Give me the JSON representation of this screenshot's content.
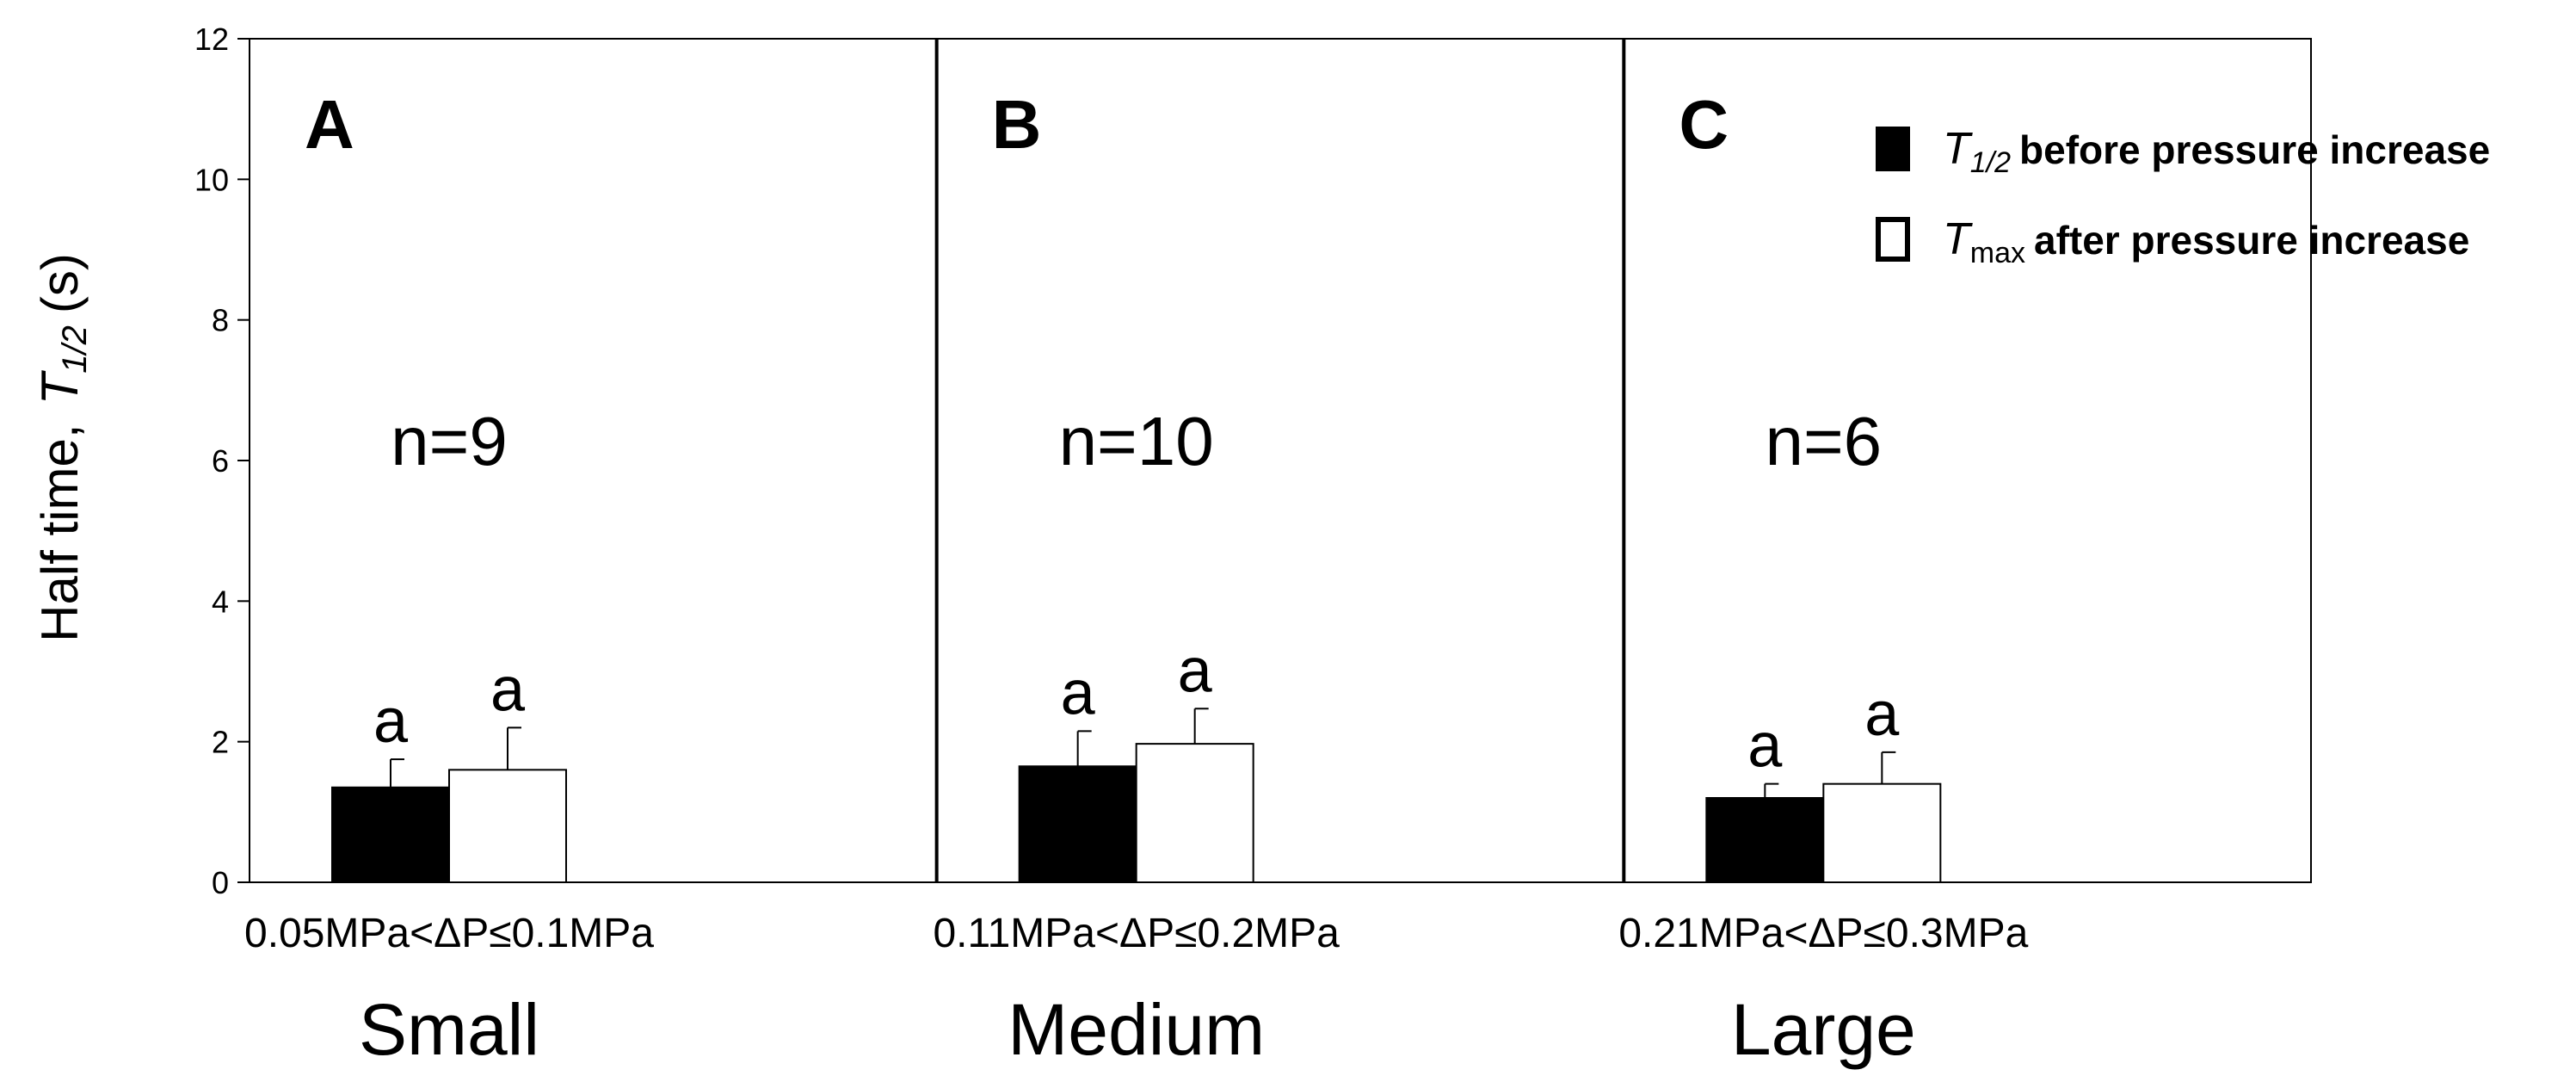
{
  "chart_data": {
    "type": "bar",
    "ylabel": {
      "prefix": "Half time,",
      "symbol": "T",
      "subscript": "1/2",
      "unit": "(s)"
    },
    "ylim": [
      0,
      12
    ],
    "yticks": [
      0,
      2,
      4,
      6,
      8,
      10,
      12
    ],
    "grid": false,
    "legend_position": "right",
    "series": [
      {
        "name": {
          "symbol": "T",
          "subscript": "1/2",
          "text": "before pressure increase"
        },
        "fill": "#000000",
        "values": [
          1.35,
          1.65,
          1.2
        ],
        "errors": [
          0.4,
          0.5,
          0.2
        ],
        "labels": [
          "a",
          "a",
          "a"
        ]
      },
      {
        "name": {
          "symbol": "T",
          "subscript": "max",
          "text": "after pressure increase"
        },
        "fill": "#ffffff",
        "values": [
          1.6,
          1.97,
          1.4
        ],
        "errors": [
          0.6,
          0.5,
          0.45
        ],
        "labels": [
          "a",
          "a",
          "a"
        ]
      }
    ],
    "groups": [
      {
        "letter": "A",
        "n_label": "n=9",
        "range_label": "0.05MPa<ΔP≤0.1MPa",
        "category": "Small"
      },
      {
        "letter": "B",
        "n_label": "n=10",
        "range_label": "0.11MPa<ΔP≤0.2MPa",
        "category": "Medium"
      },
      {
        "letter": "C",
        "n_label": "n=6",
        "range_label": "0.21MPa<ΔP≤0.3MPa",
        "category": "Large"
      }
    ]
  }
}
